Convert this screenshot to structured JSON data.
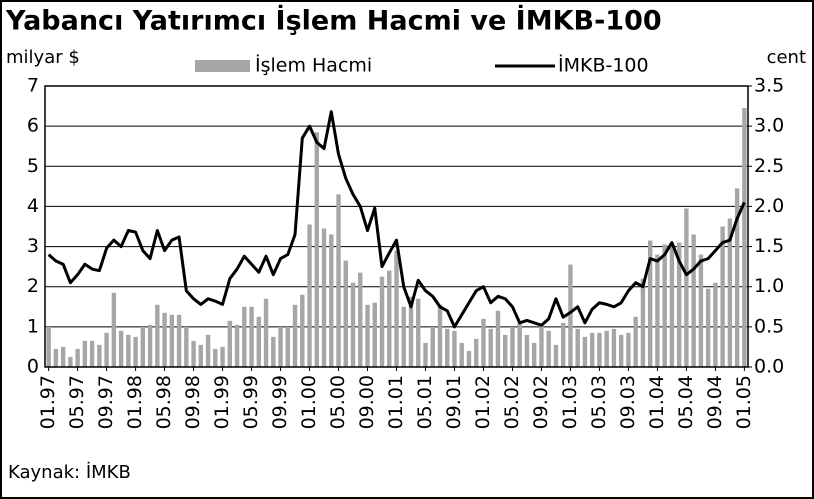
{
  "chart_data": {
    "type": "bar-line",
    "title": "Yabancı Yatırımcı İşlem Hacmi ve İMKB-100",
    "y_label": "milyar $",
    "y2_label": "cent",
    "source": "Kaynak: İMKB",
    "categories": [
      "01.97",
      null,
      null,
      null,
      "05.97",
      null,
      null,
      null,
      "09.97",
      null,
      null,
      null,
      "01.98",
      null,
      null,
      null,
      "05.98",
      null,
      null,
      null,
      "09.98",
      null,
      null,
      null,
      "01.99",
      null,
      null,
      null,
      "05.99",
      null,
      null,
      null,
      "09.99",
      null,
      null,
      null,
      "01.00",
      null,
      null,
      null,
      "05.00",
      null,
      null,
      null,
      "09.00",
      null,
      null,
      null,
      "01.01",
      null,
      null,
      null,
      "05.01",
      null,
      null,
      null,
      "09.01",
      null,
      null,
      null,
      "01.02",
      null,
      null,
      null,
      "05.02",
      null,
      null,
      null,
      "09.02",
      null,
      null,
      null,
      "01.03",
      null,
      null,
      null,
      "05.03",
      null,
      null,
      null,
      "09.03",
      null,
      null,
      null,
      "01.04",
      null,
      null,
      null,
      "05.04",
      null,
      null,
      null,
      "09.04",
      null,
      null,
      null,
      "01.05"
    ],
    "series": [
      {
        "name": "İşlem Hacmi",
        "type": "bar",
        "color": "#a6a6a6",
        "axis": "y",
        "values": [
          1.0,
          0.45,
          0.5,
          0.25,
          0.45,
          0.65,
          0.65,
          0.55,
          0.85,
          1.85,
          0.9,
          0.8,
          0.75,
          1.0,
          1.05,
          1.55,
          1.35,
          1.3,
          1.3,
          1.0,
          0.65,
          0.55,
          0.8,
          0.45,
          0.5,
          1.15,
          1.05,
          1.5,
          1.5,
          1.25,
          1.7,
          0.75,
          1.0,
          1.0,
          1.55,
          1.8,
          3.55,
          5.85,
          3.45,
          3.3,
          4.3,
          2.65,
          2.1,
          2.35,
          1.55,
          1.6,
          2.25,
          2.4,
          2.9,
          1.5,
          1.75,
          1.7,
          0.6,
          1.0,
          1.55,
          0.95,
          0.9,
          0.6,
          0.4,
          0.7,
          1.2,
          0.95,
          1.4,
          0.8,
          1.0,
          1.1,
          0.8,
          0.6,
          1.05,
          0.9,
          0.55,
          1.1,
          2.55,
          0.95,
          0.75,
          0.85,
          0.85,
          0.9,
          0.95,
          0.8,
          0.85,
          1.25,
          2.2,
          3.15,
          2.8,
          3.05,
          3.05,
          3.1,
          3.95,
          3.3,
          2.8,
          1.95,
          2.1,
          3.5,
          3.7,
          4.45,
          6.45
        ]
      },
      {
        "name": "İMKB-100",
        "type": "line",
        "color": "#000000",
        "axis": "y2",
        "values": [
          1.4,
          1.32,
          1.28,
          1.05,
          1.15,
          1.28,
          1.22,
          1.2,
          1.48,
          1.58,
          1.5,
          1.7,
          1.68,
          1.45,
          1.35,
          1.7,
          1.45,
          1.58,
          1.62,
          0.95,
          0.85,
          0.78,
          0.85,
          0.82,
          0.78,
          1.1,
          1.22,
          1.38,
          1.28,
          1.18,
          1.38,
          1.15,
          1.35,
          1.4,
          1.65,
          2.85,
          3.0,
          2.8,
          2.72,
          3.18,
          2.65,
          2.35,
          2.15,
          2.0,
          1.7,
          1.98,
          1.25,
          1.42,
          1.58,
          1.0,
          0.75,
          1.08,
          0.95,
          0.88,
          0.75,
          0.7,
          0.5,
          0.65,
          0.8,
          0.95,
          1.0,
          0.8,
          0.88,
          0.85,
          0.75,
          0.55,
          0.58,
          0.55,
          0.52,
          0.6,
          0.85,
          0.62,
          0.68,
          0.75,
          0.55,
          0.72,
          0.8,
          0.78,
          0.75,
          0.8,
          0.95,
          1.05,
          1.0,
          1.35,
          1.32,
          1.4,
          1.55,
          1.32,
          1.15,
          1.22,
          1.32,
          1.35,
          1.45,
          1.55,
          1.58,
          1.85,
          2.05
        ]
      }
    ],
    "ylim": [
      0,
      7
    ],
    "yticks": [
      0,
      1,
      2,
      3,
      4,
      5,
      6,
      7
    ],
    "y2lim": [
      0,
      3.5
    ],
    "y2ticks": [
      {
        "value": 0,
        "label": "0.0"
      },
      0.5,
      {
        "value": 1,
        "label": "1.0"
      },
      1.5,
      {
        "value": 2,
        "label": "2.0"
      },
      2.5,
      {
        "value": 3,
        "label": "3.0"
      },
      3.5
    ],
    "grid": true
  }
}
